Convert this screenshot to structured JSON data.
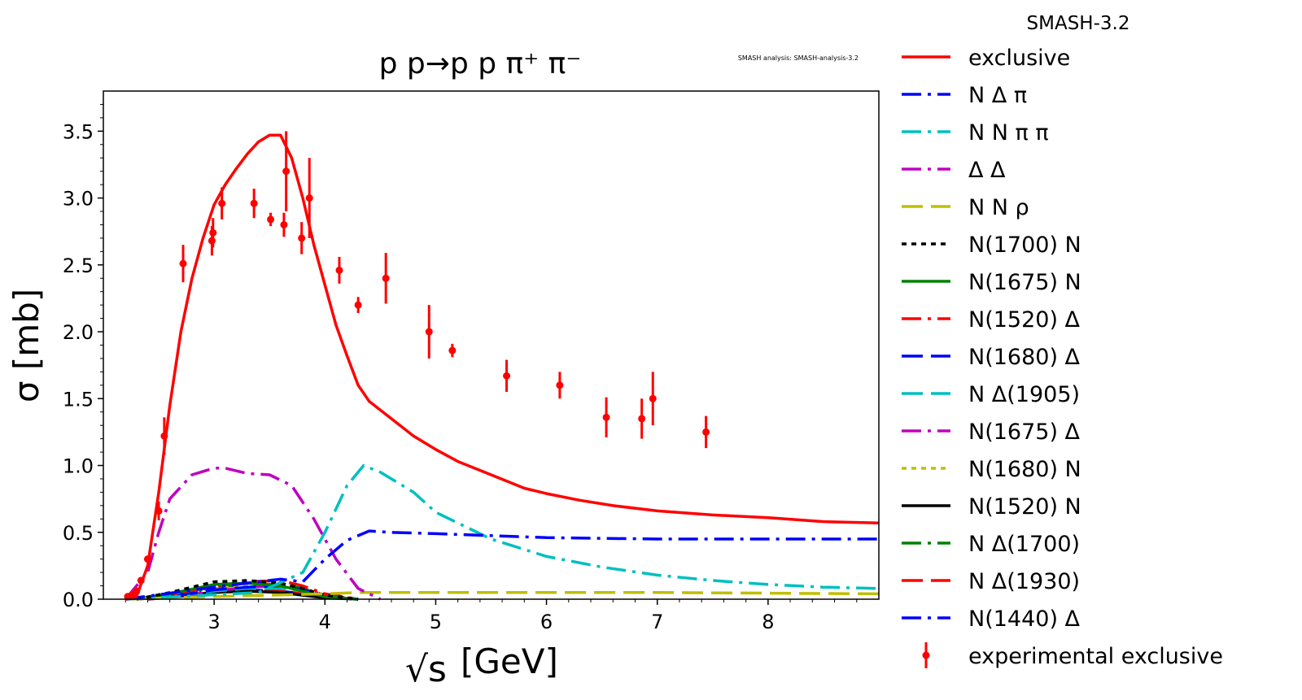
{
  "chart_data": {
    "type": "line",
    "title": "p p→p p π⁺ π⁻",
    "version_label": "SMASH-3.2",
    "analysis_label": "SMASH analysis: SMASH-analysis-3.2",
    "xlabel": "[GeV]",
    "xlabel_symbol": "√s",
    "ylabel": "σ [mb]",
    "xlim": [
      2.0,
      9.0
    ],
    "ylim": [
      0.0,
      3.8
    ],
    "xticks": [
      3,
      4,
      5,
      6,
      7,
      8
    ],
    "xtick_labels": [
      "3",
      "4",
      "5",
      "6",
      "7",
      "8"
    ],
    "yticks": [
      0.0,
      0.5,
      1.0,
      1.5,
      2.0,
      2.5,
      3.0,
      3.5
    ],
    "ytick_labels": [
      "0.0",
      "0.5",
      "1.0",
      "1.5",
      "2.0",
      "2.5",
      "3.0",
      "3.5"
    ],
    "grid": false,
    "legend_position": "outside-right",
    "series": [
      {
        "name": "exclusive",
        "color": "#ff0000",
        "dash": "solid",
        "x": [
          2.2,
          2.3,
          2.4,
          2.5,
          2.6,
          2.7,
          2.8,
          2.9,
          3.0,
          3.1,
          3.2,
          3.3,
          3.4,
          3.5,
          3.6,
          3.7,
          3.8,
          3.9,
          4.0,
          4.1,
          4.2,
          4.3,
          4.4,
          4.6,
          4.8,
          5.0,
          5.2,
          5.5,
          5.8,
          6.0,
          6.3,
          6.6,
          7.0,
          7.5,
          8.0,
          8.5,
          9.0
        ],
        "y": [
          0.0,
          0.02,
          0.25,
          0.8,
          1.45,
          2.0,
          2.4,
          2.7,
          2.95,
          3.1,
          3.22,
          3.33,
          3.42,
          3.47,
          3.47,
          3.3,
          3.0,
          2.65,
          2.35,
          2.05,
          1.82,
          1.6,
          1.48,
          1.35,
          1.22,
          1.12,
          1.03,
          0.93,
          0.83,
          0.79,
          0.74,
          0.7,
          0.66,
          0.63,
          0.61,
          0.58,
          0.57
        ]
      },
      {
        "name": "N Δ π",
        "color": "#0000ff",
        "dash": "dashdot",
        "x": [
          2.2,
          3.0,
          3.6,
          3.8,
          4.0,
          4.2,
          4.4,
          4.6,
          5.0,
          6.0,
          7.0,
          8.0,
          9.0
        ],
        "y": [
          0.0,
          0.09,
          0.15,
          0.13,
          0.3,
          0.44,
          0.51,
          0.5,
          0.49,
          0.46,
          0.45,
          0.45,
          0.45
        ]
      },
      {
        "name": "N N π π",
        "color": "#00bfbf",
        "dash": "dashdot",
        "x": [
          2.2,
          3.4,
          3.8,
          4.0,
          4.2,
          4.35,
          4.5,
          4.8,
          5.0,
          5.5,
          6.0,
          6.5,
          7.0,
          7.5,
          8.0,
          8.5,
          9.0
        ],
        "y": [
          0.0,
          0.05,
          0.2,
          0.5,
          0.85,
          1.0,
          0.95,
          0.8,
          0.65,
          0.45,
          0.32,
          0.24,
          0.18,
          0.14,
          0.11,
          0.09,
          0.08
        ]
      },
      {
        "name": "Δ Δ",
        "color": "#bf00bf",
        "dash": "dashdot",
        "x": [
          2.2,
          2.4,
          2.5,
          2.6,
          2.8,
          3.0,
          3.1,
          3.3,
          3.5,
          3.7,
          3.9,
          4.1,
          4.3,
          4.5
        ],
        "y": [
          0.0,
          0.2,
          0.5,
          0.75,
          0.93,
          0.98,
          0.98,
          0.94,
          0.93,
          0.85,
          0.6,
          0.3,
          0.08,
          0.0
        ]
      },
      {
        "name": "N N ρ",
        "color": "#bfbf00",
        "dash": "dashed",
        "x": [
          2.2,
          3.0,
          4.0,
          4.3,
          5.0,
          6.0,
          7.0,
          8.0,
          9.0
        ],
        "y": [
          0.0,
          0.02,
          0.04,
          0.05,
          0.05,
          0.05,
          0.05,
          0.045,
          0.04
        ]
      },
      {
        "name": "N(1700) N",
        "color": "#000000",
        "dash": "dotted",
        "x": [
          2.3,
          2.6,
          3.0,
          3.3,
          3.6,
          3.8,
          4.0,
          4.3
        ],
        "y": [
          0.0,
          0.05,
          0.13,
          0.14,
          0.12,
          0.08,
          0.03,
          0.0
        ]
      },
      {
        "name": "N(1675) N",
        "color": "#008000",
        "dash": "solid",
        "x": [
          2.3,
          2.6,
          3.0,
          3.3,
          3.6,
          3.8,
          4.0,
          4.3
        ],
        "y": [
          0.0,
          0.04,
          0.11,
          0.12,
          0.1,
          0.06,
          0.02,
          0.0
        ]
      },
      {
        "name": "N(1520) Δ",
        "color": "#ff0000",
        "dash": "dashdot",
        "x": [
          2.4,
          2.7,
          3.0,
          3.3,
          3.6,
          3.8,
          4.0,
          4.3
        ],
        "y": [
          0.0,
          0.05,
          0.1,
          0.13,
          0.14,
          0.1,
          0.04,
          0.0
        ]
      },
      {
        "name": "N(1680) Δ",
        "color": "#0000ff",
        "dash": "dashed",
        "x": [
          2.4,
          2.7,
          3.0,
          3.3,
          3.6,
          3.8,
          4.0,
          4.3
        ],
        "y": [
          0.0,
          0.03,
          0.07,
          0.09,
          0.1,
          0.07,
          0.03,
          0.0
        ]
      },
      {
        "name": "N Δ(1905)",
        "color": "#00bfbf",
        "dash": "dashed",
        "x": [
          2.4,
          2.7,
          3.0,
          3.3,
          3.6,
          3.8,
          4.0,
          4.3
        ],
        "y": [
          0.0,
          0.03,
          0.06,
          0.08,
          0.08,
          0.06,
          0.02,
          0.0
        ]
      },
      {
        "name": "N(1675) Δ",
        "color": "#bf00bf",
        "dash": "dashdot",
        "x": [
          2.4,
          2.7,
          3.0,
          3.3,
          3.6,
          3.8,
          4.0,
          4.3
        ],
        "y": [
          0.0,
          0.02,
          0.06,
          0.09,
          0.1,
          0.07,
          0.03,
          0.0
        ]
      },
      {
        "name": "N(1680) N",
        "color": "#bfbf00",
        "dash": "dotted",
        "x": [
          2.3,
          2.6,
          3.0,
          3.3,
          3.6,
          3.8,
          4.0,
          4.3
        ],
        "y": [
          0.0,
          0.03,
          0.08,
          0.1,
          0.09,
          0.06,
          0.02,
          0.0
        ]
      },
      {
        "name": "N(1520) N",
        "color": "#000000",
        "dash": "solid",
        "x": [
          2.3,
          2.6,
          3.0,
          3.3,
          3.6,
          3.8,
          4.0,
          4.3
        ],
        "y": [
          0.0,
          0.02,
          0.05,
          0.06,
          0.05,
          0.03,
          0.01,
          0.0
        ]
      },
      {
        "name": "N Δ(1700)",
        "color": "#008000",
        "dash": "dashdot",
        "x": [
          2.4,
          2.7,
          3.0,
          3.3,
          3.6,
          3.8,
          4.0,
          4.3
        ],
        "y": [
          0.0,
          0.04,
          0.09,
          0.11,
          0.11,
          0.08,
          0.03,
          0.0
        ]
      },
      {
        "name": "N Δ(1930)",
        "color": "#ff0000",
        "dash": "dashed",
        "x": [
          2.4,
          2.7,
          3.0,
          3.3,
          3.6,
          3.8,
          4.0,
          4.3
        ],
        "y": [
          0.0,
          0.02,
          0.05,
          0.07,
          0.07,
          0.05,
          0.02,
          0.0
        ]
      },
      {
        "name": "N(1440) Δ",
        "color": "#0000ff",
        "dash": "dashdot",
        "x": [
          2.3,
          2.6,
          3.0,
          3.3,
          3.6,
          3.8,
          4.0,
          4.3
        ],
        "y": [
          0.0,
          0.03,
          0.06,
          0.07,
          0.06,
          0.04,
          0.01,
          0.0
        ]
      }
    ],
    "experimental": {
      "name": "experimental exclusive",
      "color": "#ff0000",
      "points": [
        {
          "x": 2.22,
          "y": 0.02,
          "err": 0.0
        },
        {
          "x": 2.26,
          "y": 0.03,
          "err": 0.0
        },
        {
          "x": 2.3,
          "y": 0.06,
          "err": 0.0
        },
        {
          "x": 2.34,
          "y": 0.14,
          "err": 0.0
        },
        {
          "x": 2.4,
          "y": 0.3,
          "err": 0.0
        },
        {
          "x": 2.5,
          "y": 0.66,
          "err": 0.07
        },
        {
          "x": 2.55,
          "y": 1.22,
          "err": 0.14
        },
        {
          "x": 2.72,
          "y": 2.51,
          "err": 0.14
        },
        {
          "x": 2.98,
          "y": 2.68,
          "err": 0.11
        },
        {
          "x": 2.99,
          "y": 2.74,
          "err": 0.11
        },
        {
          "x": 3.07,
          "y": 2.96,
          "err": 0.12
        },
        {
          "x": 3.36,
          "y": 2.96,
          "err": 0.11
        },
        {
          "x": 3.51,
          "y": 2.84,
          "err": 0.05
        },
        {
          "x": 3.63,
          "y": 2.8,
          "err": 0.09
        },
        {
          "x": 3.65,
          "y": 3.2,
          "err": 0.3
        },
        {
          "x": 3.79,
          "y": 2.7,
          "err": 0.12
        },
        {
          "x": 3.86,
          "y": 3.0,
          "err": 0.3
        },
        {
          "x": 4.13,
          "y": 2.46,
          "err": 0.1
        },
        {
          "x": 4.3,
          "y": 2.2,
          "err": 0.06
        },
        {
          "x": 4.55,
          "y": 2.4,
          "err": 0.19
        },
        {
          "x": 4.94,
          "y": 2.0,
          "err": 0.2
        },
        {
          "x": 5.15,
          "y": 1.86,
          "err": 0.05
        },
        {
          "x": 5.64,
          "y": 1.67,
          "err": 0.12
        },
        {
          "x": 6.12,
          "y": 1.6,
          "err": 0.1
        },
        {
          "x": 6.54,
          "y": 1.36,
          "err": 0.15
        },
        {
          "x": 6.86,
          "y": 1.35,
          "err": 0.15
        },
        {
          "x": 6.96,
          "y": 1.5,
          "err": 0.2
        },
        {
          "x": 7.44,
          "y": 1.25,
          "err": 0.12
        }
      ]
    }
  }
}
